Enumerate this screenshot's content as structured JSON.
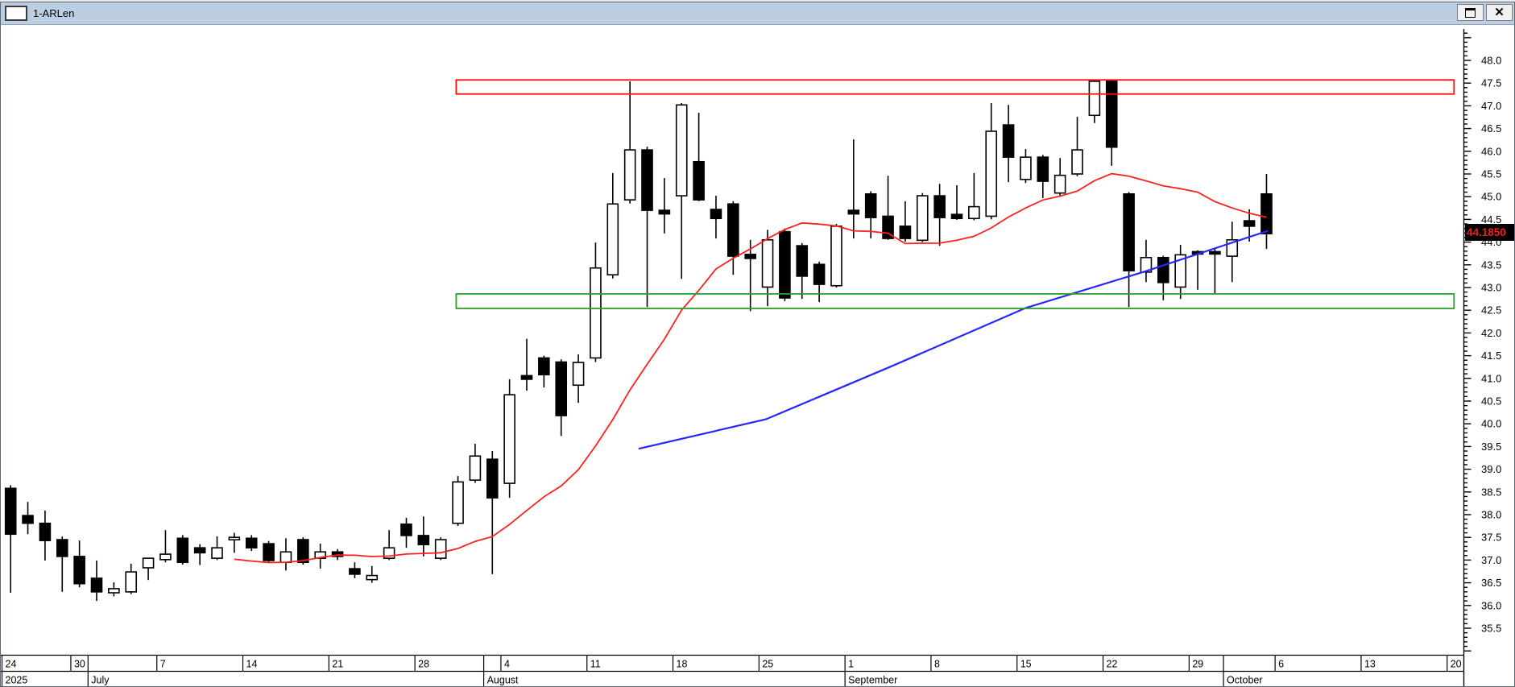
{
  "window": {
    "title": "1-ARLen",
    "maximize_label": "maximize",
    "close_label": "close"
  },
  "price_tag": {
    "value": "44.1850",
    "bg": "#000000",
    "fg": "#f02020"
  },
  "chart_data": {
    "type": "candlestick",
    "title": "1-ARLen",
    "last_price": 44.185,
    "grid": "off",
    "y_axis": {
      "min": 35.5,
      "max": 48.0,
      "major_step": 0.5,
      "minor_step": 0.1,
      "labels": [
        "48.0",
        "47.5",
        "47.0",
        "46.5",
        "46.0",
        "45.5",
        "45.0",
        "44.5",
        "44.0",
        "43.5",
        "43.0",
        "42.5",
        "42.0",
        "41.5",
        "41.0",
        "40.5",
        "40.0",
        "39.5",
        "39.0",
        "38.5",
        "38.0",
        "37.5",
        "37.0",
        "36.5",
        "36.0",
        "35.5"
      ],
      "position": "right"
    },
    "x_axis": {
      "year": "2025",
      "week_cells": [
        {
          "label": "24",
          "d0": 0,
          "d1": 4
        },
        {
          "label": "30",
          "d0": 4,
          "d1": 5
        },
        {
          "label": "",
          "d0": 5,
          "d1": 9
        },
        {
          "label": "7",
          "d0": 9,
          "d1": 14
        },
        {
          "label": "14",
          "d0": 14,
          "d1": 19
        },
        {
          "label": "21",
          "d0": 19,
          "d1": 24
        },
        {
          "label": "28",
          "d0": 24,
          "d1": 28
        },
        {
          "label": "",
          "d0": 28,
          "d1": 29
        },
        {
          "label": "4",
          "d0": 29,
          "d1": 34
        },
        {
          "label": "11",
          "d0": 34,
          "d1": 39
        },
        {
          "label": "18",
          "d0": 39,
          "d1": 44
        },
        {
          "label": "25",
          "d0": 44,
          "d1": 49
        },
        {
          "label": "1",
          "d0": 49,
          "d1": 54
        },
        {
          "label": "8",
          "d0": 54,
          "d1": 59
        },
        {
          "label": "15",
          "d0": 59,
          "d1": 64
        },
        {
          "label": "22",
          "d0": 64,
          "d1": 69
        },
        {
          "label": "29",
          "d0": 69,
          "d1": 71
        },
        {
          "label": "",
          "d0": 71,
          "d1": 74
        },
        {
          "label": "6",
          "d0": 74,
          "d1": 79
        },
        {
          "label": "13",
          "d0": 79,
          "d1": 84
        },
        {
          "label": "20",
          "d0": 84,
          "d1": 85.1
        }
      ],
      "month_cells": [
        {
          "label": "2025",
          "d0": 0,
          "d1": 5
        },
        {
          "label": "July",
          "d0": 5,
          "d1": 28
        },
        {
          "label": "August",
          "d0": 28,
          "d1": 49
        },
        {
          "label": "September",
          "d0": 49,
          "d1": 71
        },
        {
          "label": "October",
          "d0": 71,
          "d1": 85.1
        }
      ]
    },
    "candles": [
      [
        38.58,
        38.65,
        36.28,
        37.57
      ],
      [
        37.98,
        38.28,
        37.57,
        37.81
      ],
      [
        37.81,
        38.09,
        36.99,
        37.43
      ],
      [
        37.45,
        37.52,
        36.3,
        37.08
      ],
      [
        37.08,
        37.43,
        36.4,
        36.48
      ],
      [
        36.6,
        36.99,
        36.1,
        36.3
      ],
      [
        36.28,
        36.51,
        36.2,
        36.37
      ],
      [
        36.3,
        36.92,
        36.25,
        36.74
      ],
      [
        36.83,
        37.04,
        36.56,
        37.04
      ],
      [
        37.01,
        37.66,
        36.95,
        37.13
      ],
      [
        37.48,
        37.55,
        36.9,
        36.95
      ],
      [
        37.27,
        37.35,
        36.89,
        37.16
      ],
      [
        37.04,
        37.52,
        37.0,
        37.27
      ],
      [
        37.45,
        37.6,
        37.16,
        37.5
      ],
      [
        37.48,
        37.55,
        37.2,
        37.27
      ],
      [
        37.36,
        37.42,
        36.95,
        36.99
      ],
      [
        36.95,
        37.48,
        36.77,
        37.18
      ],
      [
        37.45,
        37.5,
        36.9,
        36.95
      ],
      [
        37.04,
        37.36,
        36.81,
        37.18
      ],
      [
        37.18,
        37.24,
        37.0,
        37.08
      ],
      [
        36.81,
        36.95,
        36.6,
        36.69
      ],
      [
        36.57,
        36.87,
        36.5,
        36.66
      ],
      [
        37.04,
        37.66,
        37.0,
        37.27
      ],
      [
        37.79,
        37.93,
        37.27,
        37.54
      ],
      [
        37.54,
        37.96,
        37.08,
        37.34
      ],
      [
        37.04,
        37.5,
        37.0,
        37.45
      ],
      [
        37.81,
        38.85,
        37.75,
        38.72
      ],
      [
        38.76,
        39.56,
        38.7,
        39.29
      ],
      [
        39.22,
        39.4,
        36.69,
        38.37
      ],
      [
        38.69,
        40.98,
        38.37,
        40.64
      ],
      [
        41.06,
        41.87,
        40.73,
        40.98
      ],
      [
        41.45,
        41.5,
        40.8,
        41.08
      ],
      [
        41.36,
        41.42,
        39.73,
        40.18
      ],
      [
        40.85,
        41.53,
        40.46,
        41.35
      ],
      [
        41.45,
        43.99,
        41.36,
        43.43
      ],
      [
        43.28,
        45.52,
        43.2,
        44.84
      ],
      [
        44.93,
        47.54,
        44.85,
        46.03
      ],
      [
        46.03,
        46.1,
        42.57,
        44.7
      ],
      [
        44.7,
        45.41,
        44.19,
        44.62
      ],
      [
        45.02,
        47.06,
        43.19,
        47.02
      ],
      [
        45.77,
        46.85,
        44.9,
        44.93
      ],
      [
        44.72,
        45.02,
        44.08,
        44.52
      ],
      [
        44.84,
        44.9,
        43.28,
        43.69
      ],
      [
        43.73,
        44.05,
        42.48,
        43.64
      ],
      [
        43.01,
        44.27,
        42.59,
        44.05
      ],
      [
        44.23,
        44.3,
        42.7,
        42.77
      ],
      [
        43.92,
        43.98,
        42.75,
        43.25
      ],
      [
        43.51,
        43.57,
        42.68,
        43.07
      ],
      [
        43.04,
        44.4,
        43.0,
        44.35
      ],
      [
        44.7,
        46.26,
        44.08,
        44.62
      ],
      [
        45.06,
        45.12,
        44.08,
        44.54
      ],
      [
        44.57,
        45.46,
        44.05,
        44.08
      ],
      [
        44.35,
        44.9,
        44.01,
        44.08
      ],
      [
        44.04,
        45.08,
        44.0,
        45.02
      ],
      [
        45.02,
        45.28,
        43.92,
        44.54
      ],
      [
        44.61,
        45.25,
        44.49,
        44.52
      ],
      [
        44.52,
        45.52,
        44.48,
        44.78
      ],
      [
        44.57,
        47.06,
        44.5,
        46.44
      ],
      [
        46.58,
        47.02,
        45.32,
        45.87
      ],
      [
        45.38,
        46.05,
        45.3,
        45.87
      ],
      [
        45.87,
        45.92,
        44.97,
        45.34
      ],
      [
        45.08,
        45.85,
        45.02,
        45.47
      ],
      [
        45.5,
        46.76,
        45.45,
        46.03
      ],
      [
        46.79,
        47.58,
        46.62,
        47.54
      ],
      [
        47.54,
        47.58,
        45.68,
        46.09
      ],
      [
        45.06,
        45.1,
        42.57,
        43.37
      ],
      [
        43.34,
        44.05,
        43.12,
        43.66
      ],
      [
        43.66,
        43.7,
        42.72,
        43.11
      ],
      [
        43.01,
        43.94,
        42.75,
        43.72
      ],
      [
        43.79,
        43.82,
        42.95,
        43.77
      ],
      [
        43.79,
        43.88,
        42.86,
        43.76
      ],
      [
        43.69,
        44.45,
        43.12,
        44.05
      ],
      [
        44.47,
        44.72,
        44.01,
        44.35
      ],
      [
        45.06,
        45.5,
        43.85,
        44.185
      ]
    ],
    "overlays": {
      "sma": {
        "name": "moving-average",
        "period": 13,
        "start_index": 13,
        "color": "#ff2020"
      },
      "trendline": {
        "name": "trendline",
        "color": "#2428ff",
        "points": [
          [
            36.5,
            39.45
          ],
          [
            43.9,
            40.1
          ],
          [
            51.1,
            41.25
          ],
          [
            59.0,
            42.55
          ],
          [
            65.9,
            43.35
          ],
          [
            73.1,
            44.25
          ]
        ]
      },
      "zones": [
        {
          "name": "resistance-zone",
          "color": "#ff0d0d",
          "price_top": 47.57,
          "price_bottom": 47.26,
          "day_start": 25.9,
          "day_end": 83.9
        },
        {
          "name": "support-zone",
          "color": "#28a028",
          "price_top": 42.86,
          "price_bottom": 42.54,
          "day_start": 25.9,
          "day_end": 83.9
        }
      ]
    },
    "colors": {
      "up": "#ffffff",
      "down": "#000000",
      "outline": "#000000",
      "axis": "#000000"
    }
  }
}
